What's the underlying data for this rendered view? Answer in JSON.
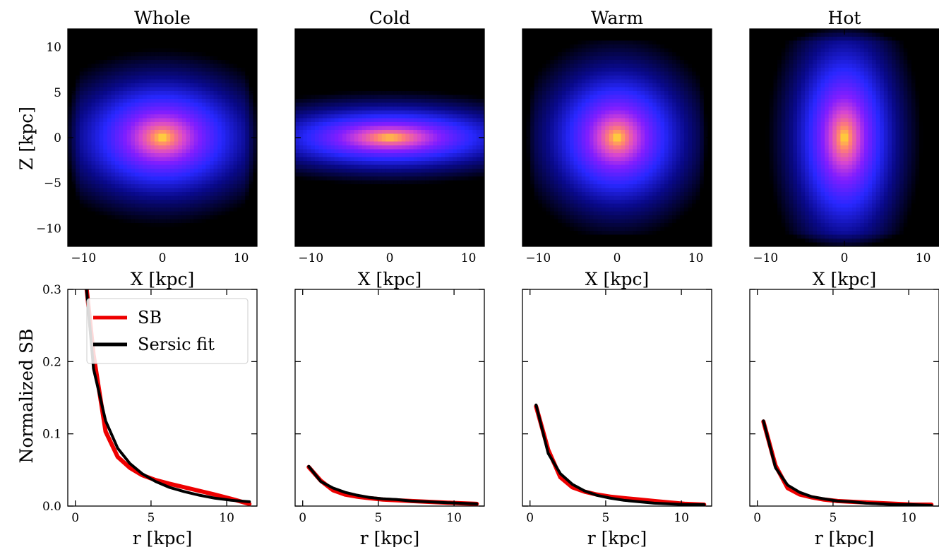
{
  "figure": {
    "panel_titles": [
      "Whole",
      "Cold",
      "Warm",
      "Hot"
    ],
    "top_xlabel": "X [kpc]",
    "top_ylabel": "Z [kpc]",
    "bottom_xlabel": "r [kpc]",
    "bottom_ylabel": "Normalized SB"
  },
  "colors": {
    "sb": "#ee0000",
    "fit": "#000000",
    "map_colormap": "gnuplot2"
  },
  "chart_data": [
    {
      "type": "heatmap",
      "title": "Whole",
      "xlabel": "X [kpc]",
      "ylabel": "Z [kpc]",
      "xlim": [
        -12,
        12
      ],
      "ylim": [
        -12,
        12
      ],
      "xticks": [
        -10,
        0,
        10
      ],
      "yticks": [
        -10,
        -5,
        0,
        5,
        10
      ],
      "colormap": "gnuplot2",
      "scale_x_kpc": 5.0,
      "scale_z_kpc": 3.0,
      "background": "none"
    },
    {
      "type": "heatmap",
      "title": "Cold",
      "xlabel": "X [kpc]",
      "xlim": [
        -12,
        12
      ],
      "ylim": [
        -12,
        12
      ],
      "xticks": [
        -10,
        0,
        10
      ],
      "yticks": [
        -10,
        -5,
        0,
        5,
        10
      ],
      "colormap": "gnuplot2",
      "scale_x_kpc": 7.0,
      "scale_z_kpc": 1.6,
      "background": "black_beyond_|z|>8"
    },
    {
      "type": "heatmap",
      "title": "Warm",
      "xlabel": "X [kpc]",
      "xlim": [
        -12,
        12
      ],
      "ylim": [
        -12,
        12
      ],
      "xticks": [
        -10,
        0,
        10
      ],
      "yticks": [
        -10,
        -5,
        0,
        5,
        10
      ],
      "colormap": "gnuplot2",
      "scale_x_kpc": 4.0,
      "scale_z_kpc": 3.5,
      "background": "none"
    },
    {
      "type": "heatmap",
      "title": "Hot",
      "xlabel": "X [kpc]",
      "xlim": [
        -12,
        12
      ],
      "ylim": [
        -12,
        12
      ],
      "xticks": [
        -10,
        0,
        10
      ],
      "yticks": [
        -10,
        -5,
        0,
        5,
        10
      ],
      "colormap": "gnuplot2",
      "scale_x_kpc": 3.0,
      "scale_z_kpc": 5.0,
      "background": "none"
    },
    {
      "type": "line",
      "xlabel": "r [kpc]",
      "ylabel": "Normalized SB",
      "xlim": [
        -0.5,
        12
      ],
      "ylim": [
        0,
        0.3
      ],
      "xticks": [
        0,
        5,
        10
      ],
      "yticks": [
        0.0,
        0.1,
        0.2,
        0.3
      ],
      "legend": "top-right",
      "series": [
        {
          "name": "SB",
          "x": [
            0.7,
            1.2,
            2.0,
            2.8,
            3.6,
            4.4,
            5.3,
            6.2,
            7.2,
            8.2,
            9.2,
            10.3,
            11.5
          ],
          "y": [
            0.31,
            0.21,
            0.103,
            0.068,
            0.053,
            0.043,
            0.036,
            0.031,
            0.026,
            0.021,
            0.016,
            0.01,
            0.003
          ]
        },
        {
          "name": "Sersic fit",
          "x": [
            0.7,
            1.2,
            2.0,
            2.8,
            3.6,
            4.4,
            5.3,
            6.2,
            7.2,
            8.2,
            9.2,
            10.3,
            11.5
          ],
          "y": [
            0.31,
            0.19,
            0.118,
            0.08,
            0.059,
            0.045,
            0.034,
            0.026,
            0.02,
            0.015,
            0.011,
            0.008,
            0.006
          ]
        }
      ]
    },
    {
      "type": "line",
      "xlabel": "r [kpc]",
      "xlim": [
        -0.5,
        12
      ],
      "ylim": [
        0,
        0.3
      ],
      "xticks": [
        0,
        5,
        10
      ],
      "yticks": [
        0.0,
        0.1,
        0.2,
        0.3
      ],
      "series": [
        {
          "x": [
            0.4,
            1.2,
            2.0,
            2.8,
            3.6,
            4.4,
            5.3,
            6.2,
            7.2,
            8.2,
            9.2,
            10.3,
            11.5
          ],
          "y": [
            0.054,
            0.035,
            0.022,
            0.016,
            0.013,
            0.011,
            0.009,
            0.008,
            0.007,
            0.006,
            0.005,
            0.004,
            0.003
          ]
        },
        {
          "x": [
            0.4,
            1.2,
            2.0,
            2.8,
            3.6,
            4.4,
            5.3,
            6.2,
            7.2,
            8.2,
            9.2,
            10.3,
            11.5
          ],
          "y": [
            0.055,
            0.034,
            0.025,
            0.019,
            0.015,
            0.012,
            0.01,
            0.009,
            0.007,
            0.006,
            0.005,
            0.004,
            0.003
          ]
        }
      ]
    },
    {
      "type": "line",
      "xlabel": "r [kpc]",
      "xlim": [
        -0.5,
        12
      ],
      "ylim": [
        0,
        0.3
      ],
      "xticks": [
        0,
        5,
        10
      ],
      "yticks": [
        0.0,
        0.1,
        0.2,
        0.3
      ],
      "series": [
        {
          "x": [
            0.4,
            1.2,
            2.0,
            2.8,
            3.6,
            4.4,
            5.3,
            6.2,
            7.2,
            8.2,
            9.2,
            10.3,
            11.5
          ],
          "y": [
            0.138,
            0.078,
            0.04,
            0.026,
            0.02,
            0.016,
            0.013,
            0.011,
            0.009,
            0.007,
            0.005,
            0.003,
            0.002
          ]
        },
        {
          "x": [
            0.4,
            1.2,
            2.0,
            2.8,
            3.6,
            4.4,
            5.3,
            6.2,
            7.2,
            8.2,
            9.2,
            10.3,
            11.5
          ],
          "y": [
            0.14,
            0.073,
            0.045,
            0.03,
            0.021,
            0.015,
            0.011,
            0.008,
            0.006,
            0.004,
            0.003,
            0.002,
            0.002
          ]
        }
      ]
    },
    {
      "type": "line",
      "xlabel": "r [kpc]",
      "xlim": [
        -0.5,
        12
      ],
      "ylim": [
        0,
        0.3
      ],
      "xticks": [
        0,
        5,
        10
      ],
      "yticks": [
        0.0,
        0.1,
        0.2,
        0.3
      ],
      "series": [
        {
          "x": [
            0.4,
            1.2,
            2.0,
            2.8,
            3.6,
            4.4,
            5.3,
            6.2,
            7.2,
            8.2,
            9.2,
            10.3,
            11.5
          ],
          "y": [
            0.117,
            0.056,
            0.025,
            0.016,
            0.012,
            0.009,
            0.007,
            0.006,
            0.005,
            0.004,
            0.003,
            0.002,
            0.002
          ]
        },
        {
          "x": [
            0.4,
            1.2,
            2.0,
            2.8,
            3.6,
            4.4,
            5.3,
            6.2,
            7.2,
            8.2,
            9.2,
            10.3,
            11.5
          ],
          "y": [
            0.118,
            0.053,
            0.029,
            0.019,
            0.013,
            0.01,
            0.007,
            0.006,
            0.004,
            0.003,
            0.002,
            0.002,
            0.001
          ]
        }
      ]
    }
  ]
}
